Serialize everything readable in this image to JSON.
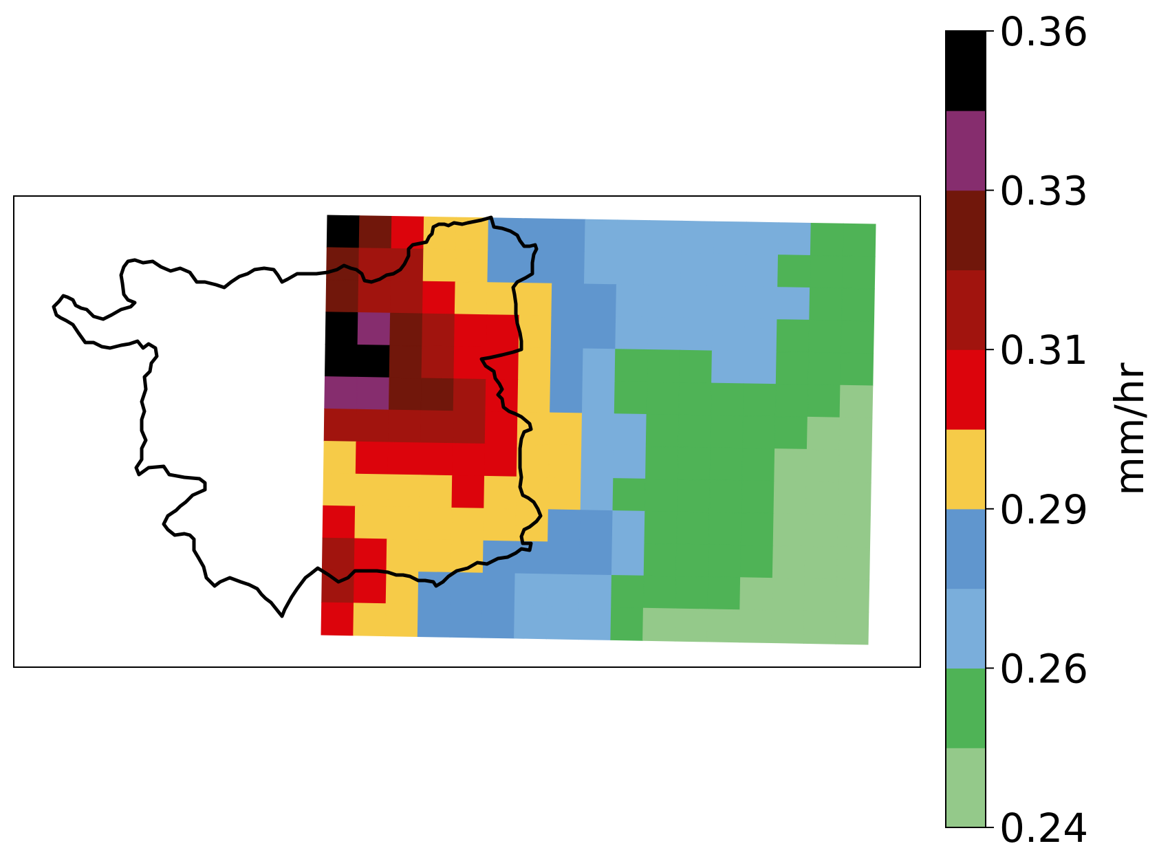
{
  "colorbar": {
    "label": "mm/hr",
    "tick_labels": [
      "0.24",
      "0.26",
      "0.29",
      "0.31",
      "0.33",
      "0.36"
    ],
    "colors": [
      "#94c98a",
      "#4fb356",
      "#7aaedb",
      "#6096ce",
      "#f6cb48",
      "#dc040c",
      "#a1140e",
      "#71170b",
      "#862d6e",
      "#000000"
    ]
  },
  "map": {
    "grid_columns": 17,
    "grid_rows": 13,
    "grid_class_matrix": [
      [
        9,
        7,
        5,
        4,
        4,
        3,
        3,
        3,
        2,
        2,
        2,
        2,
        2,
        2,
        2,
        1,
        1
      ],
      [
        7,
        6,
        6,
        4,
        4,
        3,
        3,
        3,
        2,
        2,
        2,
        2,
        2,
        2,
        1,
        1,
        1
      ],
      [
        7,
        6,
        6,
        5,
        4,
        4,
        4,
        3,
        3,
        2,
        2,
        2,
        2,
        2,
        2,
        1,
        1
      ],
      [
        9,
        8,
        7,
        6,
        5,
        5,
        4,
        3,
        3,
        2,
        2,
        2,
        2,
        2,
        1,
        1,
        1
      ],
      [
        9,
        9,
        7,
        6,
        5,
        5,
        4,
        3,
        2,
        1,
        1,
        1,
        2,
        2,
        1,
        1,
        1
      ],
      [
        8,
        8,
        7,
        7,
        6,
        5,
        4,
        3,
        2,
        1,
        1,
        1,
        1,
        1,
        1,
        1,
        0
      ],
      [
        6,
        6,
        6,
        6,
        6,
        5,
        4,
        4,
        2,
        2,
        1,
        1,
        1,
        1,
        1,
        0,
        0
      ],
      [
        4,
        5,
        5,
        5,
        5,
        5,
        4,
        4,
        2,
        2,
        1,
        1,
        1,
        1,
        0,
        0,
        0
      ],
      [
        4,
        4,
        4,
        4,
        5,
        4,
        4,
        4,
        2,
        1,
        1,
        1,
        1,
        1,
        0,
        0,
        0
      ],
      [
        5,
        4,
        4,
        4,
        4,
        4,
        4,
        3,
        3,
        2,
        1,
        1,
        1,
        1,
        0,
        0,
        0
      ],
      [
        6,
        5,
        4,
        4,
        4,
        3,
        3,
        3,
        3,
        2,
        1,
        1,
        1,
        1,
        0,
        0,
        0
      ],
      [
        6,
        5,
        4,
        3,
        3,
        3,
        2,
        2,
        2,
        1,
        1,
        1,
        1,
        0,
        0,
        0,
        0
      ],
      [
        5,
        4,
        4,
        3,
        3,
        3,
        2,
        2,
        2,
        1,
        0,
        0,
        0,
        0,
        0,
        0,
        0
      ]
    ]
  }
}
